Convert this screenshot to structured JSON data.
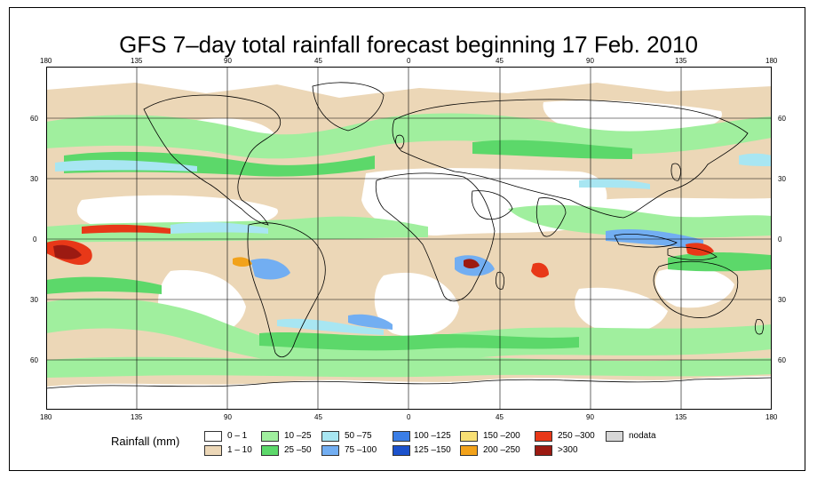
{
  "title": "GFS 7–day total rainfall forecast beginning 17 Feb. 2010",
  "lon_labels": [
    "180",
    "135",
    "90",
    "45",
    "0",
    "45",
    "90",
    "135",
    "180"
  ],
  "lat_labels": [
    "60",
    "30",
    "0",
    "30",
    "60"
  ],
  "legend": {
    "title": "Rainfall (mm)",
    "items": [
      {
        "label": "0 – 1",
        "color": "#ffffff"
      },
      {
        "label": "1 – 10",
        "color": "#ecd7b7"
      },
      {
        "label": "10 –25",
        "color": "#a0ef9e"
      },
      {
        "label": "25 –50",
        "color": "#5cd86a"
      },
      {
        "label": "50 –75",
        "color": "#a8e6f2"
      },
      {
        "label": "75 –100",
        "color": "#72aef2"
      },
      {
        "label": "100 –125",
        "color": "#3b7ee6"
      },
      {
        "label": "125 –150",
        "color": "#1c52cc"
      },
      {
        "label": "150 –200",
        "color": "#f8e074"
      },
      {
        "label": "200 –250",
        "color": "#f2a21a"
      },
      {
        "label": "250 –300",
        "color": "#e83818"
      },
      {
        "label": ">300",
        "color": "#9c1a12"
      },
      {
        "label": "nodata",
        "color": "#d7d7d7"
      }
    ]
  }
}
